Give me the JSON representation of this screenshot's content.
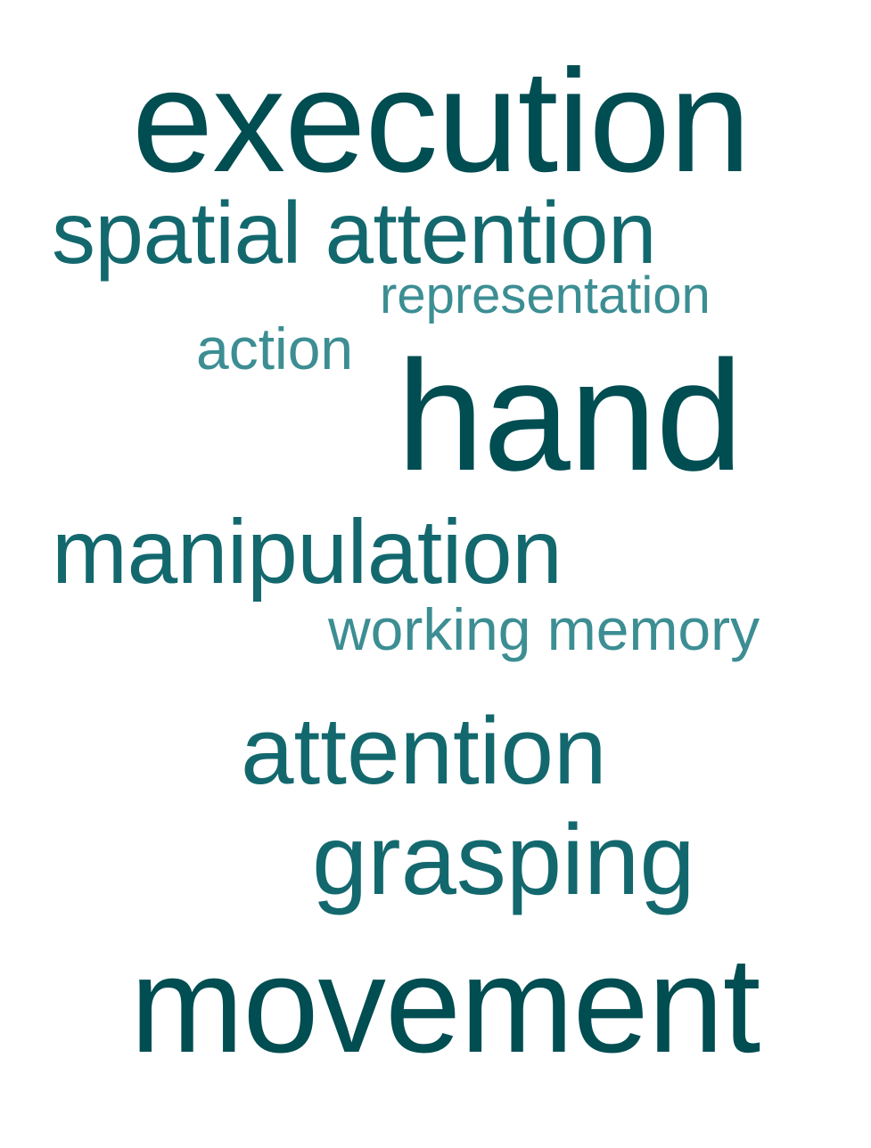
{
  "word_cloud": {
    "words": [
      {
        "id": "execution",
        "text": "execution",
        "color": "#004d52"
      },
      {
        "id": "spatial_attention",
        "text": "spatial attention",
        "color": "#13686e"
      },
      {
        "id": "representation",
        "text": "representation",
        "color": "#3c8e93"
      },
      {
        "id": "action",
        "text": "action",
        "color": "#3c8e93"
      },
      {
        "id": "hand",
        "text": "hand",
        "color": "#004d52"
      },
      {
        "id": "manipulation",
        "text": "manipulation",
        "color": "#13686e"
      },
      {
        "id": "working_memory",
        "text": "working memory",
        "color": "#3c8e93"
      },
      {
        "id": "attention",
        "text": "attention",
        "color": "#13686e"
      },
      {
        "id": "grasping",
        "text": "grasping",
        "color": "#13686e"
      },
      {
        "id": "movement",
        "text": "movement",
        "color": "#004d52"
      }
    ]
  }
}
